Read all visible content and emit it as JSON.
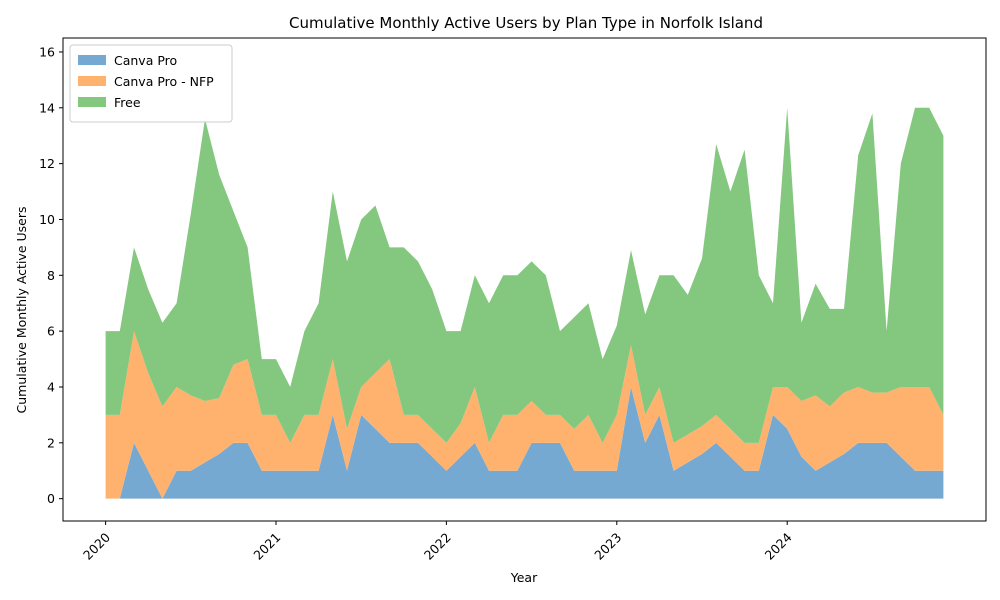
{
  "chart_data": {
    "type": "area",
    "stacked": true,
    "title": "Cumulative Monthly Active Users by Plan Type in Norfolk Island",
    "xlabel": "Year",
    "ylabel": "Cumulative Monthly Active Users",
    "x_ticks": [
      {
        "date": "2020-01",
        "label": "2020"
      },
      {
        "date": "2021-01",
        "label": "2021"
      },
      {
        "date": "2022-01",
        "label": "2022"
      },
      {
        "date": "2023-01",
        "label": "2023"
      },
      {
        "date": "2024-01",
        "label": "2024"
      }
    ],
    "xlim": [
      "2019-10",
      "2025-03"
    ],
    "ylim": [
      -0.8,
      16.5
    ],
    "y_ticks": [
      0,
      2,
      4,
      6,
      8,
      10,
      12,
      14,
      16
    ],
    "grid": false,
    "legend": {
      "position": "top-left"
    },
    "x": [
      "2020-01",
      "2020-02",
      "2020-03",
      "2020-04",
      "2020-05",
      "2020-06",
      "2020-07",
      "2020-08",
      "2020-09",
      "2020-10",
      "2020-11",
      "2020-12",
      "2021-01",
      "2021-02",
      "2021-03",
      "2021-04",
      "2021-05",
      "2021-06",
      "2021-07",
      "2021-08",
      "2021-09",
      "2021-10",
      "2021-11",
      "2021-12",
      "2022-01",
      "2022-02",
      "2022-03",
      "2022-04",
      "2022-05",
      "2022-06",
      "2022-07",
      "2022-08",
      "2022-09",
      "2022-10",
      "2022-11",
      "2022-12",
      "2023-01",
      "2023-02",
      "2023-03",
      "2023-04",
      "2023-05",
      "2023-06",
      "2023-07",
      "2023-08",
      "2023-09",
      "2023-10",
      "2023-11",
      "2023-12",
      "2024-01",
      "2024-02",
      "2024-03",
      "2024-04",
      "2024-05",
      "2024-06",
      "2024-07",
      "2024-08",
      "2024-09",
      "2024-10",
      "2024-11",
      "2024-12"
    ],
    "series": [
      {
        "name": "Canva Pro",
        "color": "#76a9d2",
        "values": [
          0,
          0,
          2,
          1,
          0,
          1,
          1,
          1.3,
          1.6,
          2,
          2,
          1,
          1,
          1,
          1,
          1,
          3,
          1,
          3,
          2.5,
          2,
          2,
          2,
          1.5,
          1,
          1.5,
          2,
          1,
          1,
          1,
          2,
          2,
          2,
          1,
          1,
          1,
          1,
          4,
          2,
          3,
          1,
          1.3,
          1.6,
          2,
          1.5,
          1,
          1,
          3,
          2.5,
          1.5,
          1,
          1.3,
          1.6,
          2,
          2,
          2,
          1.5,
          1,
          1,
          1
        ]
      },
      {
        "name": "Canva Pro - NFP",
        "color": "#ffb26e",
        "values": [
          3,
          3,
          4,
          3.5,
          3.3,
          3,
          2.7,
          2.2,
          2,
          2.8,
          3,
          2,
          2,
          1,
          2,
          2,
          2,
          1.5,
          1,
          2,
          3,
          1,
          1,
          1,
          1,
          1.2,
          2,
          1,
          2,
          2,
          1.5,
          1,
          1,
          1.5,
          2,
          1,
          2,
          1.5,
          1,
          1,
          1,
          1,
          1,
          1,
          1,
          1,
          1,
          1,
          1.5,
          2,
          2.7,
          2,
          2.2,
          2,
          1.8,
          1.8,
          2.5,
          3,
          3,
          2
        ]
      },
      {
        "name": "Free",
        "color": "#84c77f",
        "values": [
          3,
          3,
          3,
          3,
          3,
          3,
          6.5,
          10.1,
          8,
          5.5,
          4,
          2,
          2,
          2,
          3,
          4,
          6,
          6,
          6,
          6,
          4,
          6,
          5.5,
          5,
          4,
          3.3,
          4,
          5,
          5,
          5,
          5,
          5,
          3,
          4,
          4,
          3,
          3.2,
          3.4,
          3.6,
          4,
          6,
          5,
          6,
          9.7,
          8.5,
          10.5,
          6,
          3,
          10,
          2.8,
          4,
          3.5,
          3,
          8.3,
          10,
          2.2,
          8,
          10,
          10,
          10
        ]
      }
    ]
  }
}
